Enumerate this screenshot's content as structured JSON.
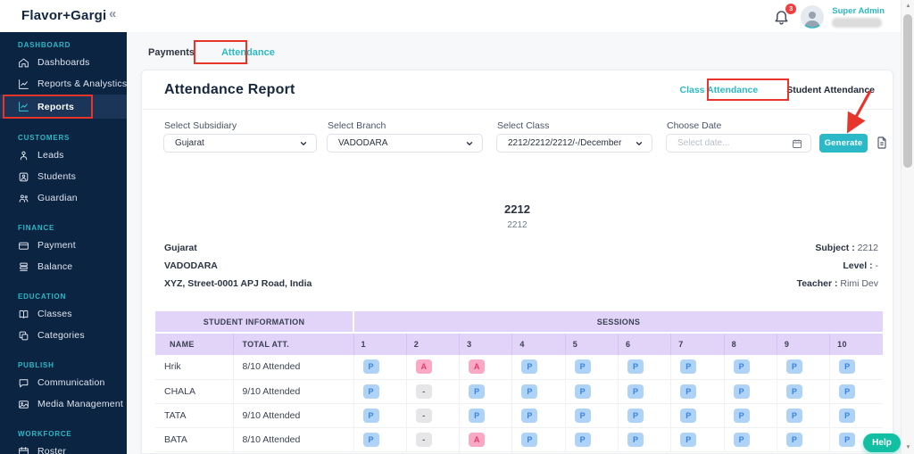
{
  "header": {
    "logo": "Flavor+Gargi",
    "collapse_icon": "«",
    "notification_count": "3",
    "user_role": "Super Admin"
  },
  "sidebar": {
    "sections": [
      {
        "label": "DASHBOARD",
        "items": [
          {
            "label": "Dashboards",
            "icon": "home-icon",
            "active": false
          },
          {
            "label": "Reports & Analystics",
            "icon": "chart-icon",
            "active": false
          },
          {
            "label": "Reports",
            "icon": "chart-icon",
            "active": true
          }
        ]
      },
      {
        "label": "CUSTOMERS",
        "items": [
          {
            "label": "Leads",
            "icon": "leads-icon",
            "active": false
          },
          {
            "label": "Students",
            "icon": "student-icon",
            "active": false
          },
          {
            "label": "Guardian",
            "icon": "guardian-icon",
            "active": false
          }
        ]
      },
      {
        "label": "FINANCE",
        "items": [
          {
            "label": "Payment",
            "icon": "card-icon",
            "active": false
          },
          {
            "label": "Balance",
            "icon": "balance-icon",
            "active": false
          }
        ]
      },
      {
        "label": "EDUCATION",
        "items": [
          {
            "label": "Classes",
            "icon": "book-icon",
            "active": false
          },
          {
            "label": "Categories",
            "icon": "copy-icon",
            "active": false
          }
        ]
      },
      {
        "label": "PUBLISH",
        "items": [
          {
            "label": "Communication",
            "icon": "chat-icon",
            "active": false
          },
          {
            "label": "Media Management",
            "icon": "media-icon",
            "active": false
          }
        ]
      },
      {
        "label": "WORKFORCE",
        "items": [
          {
            "label": "Roster",
            "icon": "calendar-icon",
            "active": false
          }
        ]
      }
    ]
  },
  "page_tabs": {
    "payments": "Payments",
    "attendance": "Attendance"
  },
  "card": {
    "title": "Attendance Report",
    "view_tabs": {
      "class": "Class Attendance",
      "student": "Student Attendance"
    },
    "filters": {
      "subsidiary": {
        "label": "Select Subsidiary",
        "value": "Gujarat"
      },
      "branch": {
        "label": "Select Branch",
        "value": "VADODARA"
      },
      "class": {
        "label": "Select Class",
        "value": "2212/2212/2212/-/December"
      },
      "date": {
        "label": "Choose Date",
        "placeholder": "Select date..."
      },
      "generate_label": "Generate"
    },
    "report": {
      "class_name": "2212",
      "class_code": "2212",
      "subsidiary": "Gujarat",
      "branch": "VADODARA",
      "address": "XYZ, Street-0001 APJ Road, India",
      "subject_label": "Subject :",
      "subject": "2212",
      "level_label": "Level :",
      "level": "-",
      "teacher_label": "Teacher :",
      "teacher": "Rimi Dev"
    },
    "table": {
      "group_student": "STUDENT INFORMATION",
      "group_sessions": "SESSIONS",
      "name_header": "NAME",
      "total_header": "TOTAL ATT.",
      "session_numbers": [
        "1",
        "2",
        "3",
        "4",
        "5",
        "6",
        "7",
        "8",
        "9",
        "10"
      ],
      "rows": [
        {
          "name": "Hrik",
          "total": "8/10 Attended",
          "sessions": [
            "P",
            "A",
            "A",
            "P",
            "P",
            "P",
            "P",
            "P",
            "P",
            "P"
          ]
        },
        {
          "name": "CHALA",
          "total": "9/10 Attended",
          "sessions": [
            "P",
            "-",
            "P",
            "P",
            "P",
            "P",
            "P",
            "P",
            "P",
            "P"
          ]
        },
        {
          "name": "TATA",
          "total": "9/10 Attended",
          "sessions": [
            "P",
            "-",
            "P",
            "P",
            "P",
            "P",
            "P",
            "P",
            "P",
            "P"
          ]
        },
        {
          "name": "BATA",
          "total": "8/10 Attended",
          "sessions": [
            "P",
            "-",
            "A",
            "P",
            "P",
            "P",
            "P",
            "P",
            "P",
            "P"
          ]
        }
      ]
    }
  },
  "help_label": "Help",
  "colors": {
    "accent_teal": "#2BB8C4",
    "sidebar_navy": "#0B2442",
    "annotation_red": "#E8352C",
    "help_green": "#12BFA2",
    "table_header_purple": "#E2D3F8",
    "present_blue": "#3B82DC",
    "absent_pink": "#E23A72"
  }
}
